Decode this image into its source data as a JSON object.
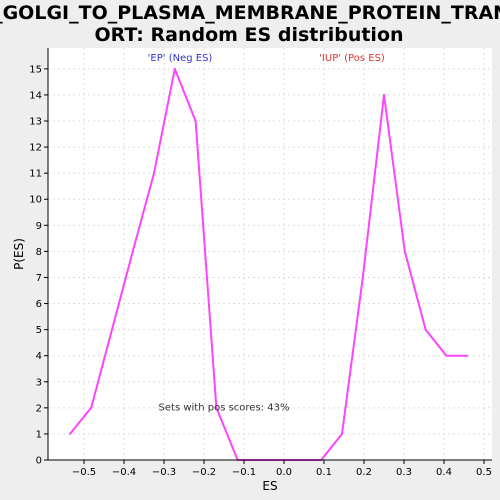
{
  "chart_data": {
    "type": "line",
    "title_lines": [
      "GO_GOLGI_TO_PLASMA_MEMBRANE_PROTEIN_TRANSP",
      "ORT: Random ES distribution"
    ],
    "xlabel": "ES",
    "ylabel": "P(ES)",
    "xlim": [
      -0.59,
      0.52
    ],
    "ylim": [
      0,
      15.8
    ],
    "x_ticks": [
      -0.5,
      -0.4,
      -0.3,
      -0.2,
      -0.1,
      0.0,
      0.1,
      0.2,
      0.3,
      0.4,
      0.5
    ],
    "x_tick_labels": [
      "−0.5",
      "−0.4",
      "−0.3",
      "−0.2",
      "−0.1",
      "0.0",
      "0.1",
      "0.2",
      "0.3",
      "0.4",
      "0.5"
    ],
    "y_ticks": [
      0,
      1,
      2,
      3,
      4,
      5,
      6,
      7,
      8,
      9,
      10,
      11,
      12,
      13,
      14,
      15
    ],
    "y_tick_labels": [
      "0",
      "1",
      "2",
      "3",
      "4",
      "5",
      "6",
      "7",
      "8",
      "9",
      "10",
      "11",
      "12",
      "13",
      "14",
      "15"
    ],
    "grid": true,
    "series": [
      {
        "color": "#ff44ff",
        "points": [
          [
            -0.535,
            1
          ],
          [
            -0.482,
            2
          ],
          [
            -0.43,
            5
          ],
          [
            -0.378,
            8
          ],
          [
            -0.325,
            11
          ],
          [
            -0.273,
            15
          ],
          [
            -0.221,
            13
          ],
          [
            -0.169,
            2
          ],
          [
            -0.116,
            0
          ],
          [
            -0.064,
            0
          ],
          [
            -0.012,
            0
          ],
          [
            0.04,
            0
          ],
          [
            0.093,
            0
          ],
          [
            0.145,
            1
          ],
          [
            0.197,
            7
          ],
          [
            0.25,
            14
          ],
          [
            0.302,
            8
          ],
          [
            0.354,
            5
          ],
          [
            0.406,
            4
          ],
          [
            0.458,
            4
          ]
        ]
      }
    ],
    "annotations": [
      {
        "text": "'EP' (Neg ES)",
        "color": "#3333cc",
        "x": -0.26,
        "y": 15.3
      },
      {
        "text": "'IUP' (Pos ES)",
        "color": "#dd3333",
        "x": 0.17,
        "y": 15.3
      },
      {
        "text": "Sets with pos scores: 43%",
        "color": "#333333",
        "x": -0.15,
        "y": 1.9
      }
    ],
    "colors": {
      "plot_background": "#ffffff",
      "page_background": "#eeeeee",
      "grid": "#dddddd",
      "axis": "#000000"
    }
  }
}
